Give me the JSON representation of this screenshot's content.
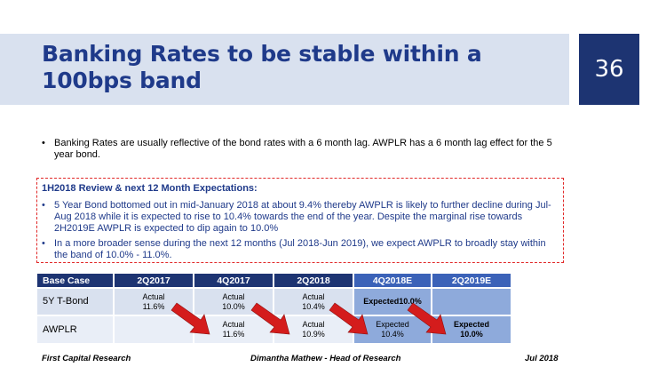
{
  "slide": {
    "title": "Banking Rates to be stable within a 100bps band",
    "page_number": "36"
  },
  "intro_bullet": "Banking Rates are usually reflective of the bond rates with a 6 month lag. AWPLR has a 6 month lag effect for the 5 year bond.",
  "review": {
    "heading": "1H2018 Review & next 12 Month Expectations:",
    "bullets": [
      "5 Year Bond bottomed out in mid-January 2018 at about 9.4% thereby AWPLR is likely to further decline during Jul-Aug 2018 while it is expected to rise to 10.4% towards the end of the year. Despite the marginal rise towards 2H2019E AWPLR is expected to dip again to 10.0%",
      "In a more broader sense during the next 12 months (Jul 2018-Jun 2019), we expect AWPLR to broadly stay within the band of 10.0% - 11.0%."
    ]
  },
  "table": {
    "headers": [
      "Base Case",
      "2Q2017",
      "4Q2017",
      "2Q2018",
      "4Q2018E",
      "2Q2019E"
    ],
    "rows": [
      {
        "label": "5Y T-Bond",
        "cells": [
          {
            "kind": "Actual",
            "value": "11.6%"
          },
          {
            "kind": "Actual",
            "value": "10.0%"
          },
          {
            "kind": "Actual",
            "value": "10.4%"
          },
          {
            "kind": "Expected",
            "value": "10.0%"
          },
          {
            "kind": "",
            "value": ""
          }
        ]
      },
      {
        "label": "AWPLR",
        "cells": [
          {
            "kind": "",
            "value": ""
          },
          {
            "kind": "Actual",
            "value": "11.6%"
          },
          {
            "kind": "Actual",
            "value": "10.9%"
          },
          {
            "kind": "Expected",
            "value": "10.4%"
          },
          {
            "kind": "Expected",
            "value": "10.0%"
          }
        ]
      }
    ]
  },
  "footer": {
    "left": "First Capital Research",
    "center": "Dimantha Mathew - Head of Research",
    "right": "Jul 2018"
  },
  "colors": {
    "title_text": "#1f3a8a",
    "title_band": "#d9e1ef",
    "page_box": "#1d3472",
    "dashed_border": "#e12828",
    "arrow": "#d41c1c"
  }
}
